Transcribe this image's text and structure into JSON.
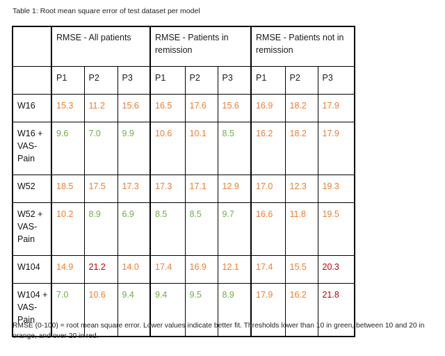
{
  "caption": "Table 1: Root mean square error of test dataset per model",
  "table": {
    "groups": [
      {
        "label": "RMSE - All patients"
      },
      {
        "label": "RMSE - Patients in remission"
      },
      {
        "label": "RMSE - Patients not in remission"
      }
    ],
    "subheaders": [
      "P1",
      "P2",
      "P3",
      "P1",
      "P2",
      "P3",
      "P1",
      "P2",
      "P3"
    ],
    "rows": [
      {
        "label": "W16",
        "cells": [
          {
            "v": "15.3",
            "status": "orange"
          },
          {
            "v": "11.2",
            "status": "orange"
          },
          {
            "v": "15.6",
            "status": "orange"
          },
          {
            "v": "16.5",
            "status": "orange"
          },
          {
            "v": "17.6",
            "status": "orange"
          },
          {
            "v": "15.6",
            "status": "orange"
          },
          {
            "v": "16.9",
            "status": "orange"
          },
          {
            "v": "18.2",
            "status": "orange"
          },
          {
            "v": "17.9",
            "status": "orange"
          }
        ]
      },
      {
        "label": "W16 + VAS-Pain",
        "cells": [
          {
            "v": "9.6",
            "status": "green"
          },
          {
            "v": "7.0",
            "status": "green"
          },
          {
            "v": "9.9",
            "status": "green"
          },
          {
            "v": "10.6",
            "status": "orange"
          },
          {
            "v": "10.1",
            "status": "orange"
          },
          {
            "v": "8.5",
            "status": "green"
          },
          {
            "v": "16.2",
            "status": "orange"
          },
          {
            "v": "18.2",
            "status": "orange"
          },
          {
            "v": "17.9",
            "status": "orange"
          }
        ]
      },
      {
        "label": "W52",
        "cells": [
          {
            "v": "18.5",
            "status": "orange"
          },
          {
            "v": "17.5",
            "status": "orange"
          },
          {
            "v": "17.3",
            "status": "orange"
          },
          {
            "v": "17.3",
            "status": "orange"
          },
          {
            "v": "17.1",
            "status": "orange"
          },
          {
            "v": "12.9",
            "status": "orange"
          },
          {
            "v": "17.0",
            "status": "orange"
          },
          {
            "v": "12.3",
            "status": "orange"
          },
          {
            "v": "19.3",
            "status": "orange"
          }
        ]
      },
      {
        "label": "W52 + VAS-Pain",
        "cells": [
          {
            "v": "10.2",
            "status": "orange"
          },
          {
            "v": "8.9",
            "status": "green"
          },
          {
            "v": "6.9",
            "status": "green"
          },
          {
            "v": "8.5",
            "status": "green"
          },
          {
            "v": "8.5",
            "status": "green"
          },
          {
            "v": "9.7",
            "status": "green"
          },
          {
            "v": "16.6",
            "status": "orange"
          },
          {
            "v": "11.8",
            "status": "orange"
          },
          {
            "v": "19.5",
            "status": "orange"
          }
        ]
      },
      {
        "label": "W104",
        "cells": [
          {
            "v": "14.9",
            "status": "orange"
          },
          {
            "v": "21.2",
            "status": "red"
          },
          {
            "v": "14.0",
            "status": "orange"
          },
          {
            "v": "17.4",
            "status": "orange"
          },
          {
            "v": "16.9",
            "status": "orange"
          },
          {
            "v": "12.1",
            "status": "orange"
          },
          {
            "v": "17.4",
            "status": "orange"
          },
          {
            "v": "15.5",
            "status": "orange"
          },
          {
            "v": "20.3",
            "status": "red"
          }
        ]
      },
      {
        "label": "W104 + VAS-Pain",
        "cells": [
          {
            "v": "7.0",
            "status": "green"
          },
          {
            "v": "10.6",
            "status": "orange"
          },
          {
            "v": "9.4",
            "status": "green"
          },
          {
            "v": "9.4",
            "status": "green"
          },
          {
            "v": "9.5",
            "status": "green"
          },
          {
            "v": "8.9",
            "status": "green"
          },
          {
            "v": "17.9",
            "status": "orange"
          },
          {
            "v": "16.2",
            "status": "orange"
          },
          {
            "v": "21.8",
            "status": "red"
          }
        ]
      }
    ]
  },
  "status_colors": {
    "green": "#70ad47",
    "orange": "#ed7d31",
    "red": "#c00000"
  },
  "footnote": "RMSE (0-100) = root mean square error. Lower values indicate better fit. Thresholds lower than 10 in green, between 10 and 20 in orange, and over 20 in red."
}
